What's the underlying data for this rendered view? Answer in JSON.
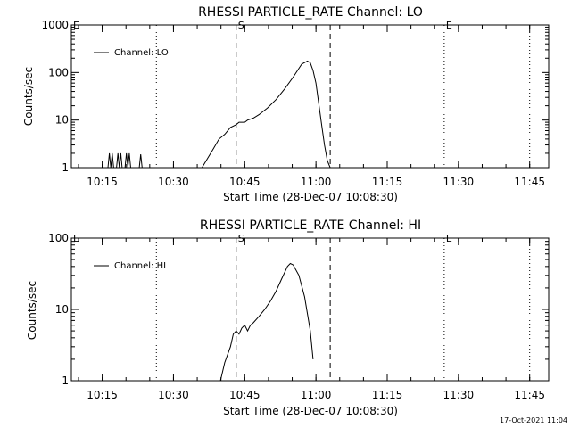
{
  "footer": {
    "timestamp": "17-Oct-2021 11:04"
  },
  "chart_data": [
    {
      "type": "line",
      "title": "RHESSI PARTICLE_RATE Channel: LO",
      "xlabel": "Start Time (28-Dec-07 10:08:30)",
      "ylabel": "Counts/sec",
      "legend": {
        "label": "Channel: LO",
        "position": "top-left"
      },
      "yscale": "log",
      "ylim": [
        1,
        1000
      ],
      "xlim": [
        10.1417,
        11.8167
      ],
      "yticks": [
        1,
        10,
        100,
        1000
      ],
      "ytick_labels": [
        "1",
        "10",
        "100",
        "1000"
      ],
      "xticks": [
        10.25,
        10.5,
        10.75,
        11.0,
        11.25,
        11.5,
        11.75
      ],
      "xtick_labels": [
        "10:15",
        "10:30",
        "10:45",
        "11:00",
        "11:15",
        "11:30",
        "11:45"
      ],
      "markers": [
        {
          "label": "E",
          "x": 10.12,
          "style": "dotted"
        },
        {
          "label": "",
          "x": 10.44,
          "style": "dotted"
        },
        {
          "label": "S",
          "x": 10.72,
          "style": "dashed"
        },
        {
          "label": "",
          "x": 11.05,
          "style": "dashed"
        },
        {
          "label": "E",
          "x": 11.45,
          "style": "dotted"
        },
        {
          "label": "",
          "x": 11.75,
          "style": "dotted"
        }
      ],
      "series": [
        {
          "name": "Channel: LO",
          "x": [
            10.26,
            10.27,
            10.275,
            10.28,
            10.285,
            10.29,
            10.3,
            10.305,
            10.31,
            10.315,
            10.32,
            10.33,
            10.335,
            10.34,
            10.345,
            10.35,
            10.355,
            10.36,
            10.37,
            10.38,
            10.385,
            10.39,
            10.4,
            10.6,
            10.64,
            10.66,
            10.68,
            10.7,
            10.72,
            10.73,
            10.75,
            10.76,
            10.78,
            10.8,
            10.83,
            10.86,
            10.89,
            10.92,
            10.95,
            10.97,
            10.98,
            10.99,
            11.0,
            11.01,
            11.02,
            11.03,
            11.04,
            11.05,
            11.06
          ],
          "values": [
            1,
            1,
            2,
            1,
            2,
            1,
            1,
            2,
            1,
            2,
            1,
            1,
            2,
            1,
            2,
            1,
            1,
            1,
            1,
            1,
            1.9,
            1,
            1,
            1,
            2.5,
            4,
            5,
            7,
            8,
            9,
            9,
            10,
            11,
            13,
            18,
            27,
            45,
            80,
            150,
            175,
            160,
            110,
            60,
            22,
            8,
            3,
            1.4,
            1,
            1
          ]
        }
      ]
    },
    {
      "type": "line",
      "title": "RHESSI PARTICLE_RATE Channel: HI",
      "xlabel": "Start Time (28-Dec-07 10:08:30)",
      "ylabel": "Counts/sec",
      "legend": {
        "label": "Channel: HI",
        "position": "top-left"
      },
      "yscale": "log",
      "ylim": [
        1,
        100
      ],
      "xlim": [
        10.1417,
        11.8167
      ],
      "yticks": [
        1,
        10,
        100
      ],
      "ytick_labels": [
        "1",
        "10",
        "100"
      ],
      "xticks": [
        10.25,
        10.5,
        10.75,
        11.0,
        11.25,
        11.5,
        11.75
      ],
      "xtick_labels": [
        "10:15",
        "10:30",
        "10:45",
        "11:00",
        "11:15",
        "11:30",
        "11:45"
      ],
      "markers": [
        {
          "label": "E",
          "x": 10.12,
          "style": "dotted"
        },
        {
          "label": "",
          "x": 10.44,
          "style": "dotted"
        },
        {
          "label": "S",
          "x": 10.72,
          "style": "dashed"
        },
        {
          "label": "",
          "x": 11.05,
          "style": "dashed"
        },
        {
          "label": "E",
          "x": 11.45,
          "style": "dotted"
        },
        {
          "label": "",
          "x": 11.75,
          "style": "dotted"
        }
      ],
      "series": [
        {
          "name": "Channel: HI",
          "x": [
            10.665,
            10.68,
            10.7,
            10.71,
            10.72,
            10.73,
            10.74,
            10.75,
            10.76,
            10.77,
            10.78,
            10.8,
            10.82,
            10.84,
            10.86,
            10.88,
            10.9,
            10.91,
            10.92,
            10.94,
            10.96,
            10.98,
            10.99
          ],
          "values": [
            1,
            1.8,
            3,
            4.5,
            5,
            4.5,
            5.5,
            6,
            5,
            6,
            6.5,
            8,
            10,
            13,
            18,
            27,
            40,
            44,
            42,
            30,
            15,
            5,
            2
          ]
        }
      ]
    }
  ]
}
